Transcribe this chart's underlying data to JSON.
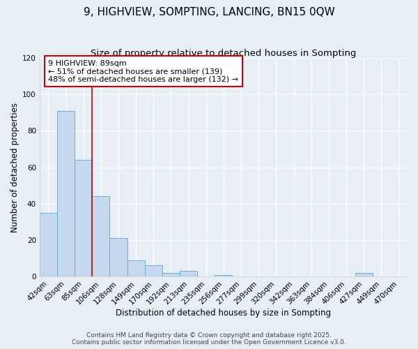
{
  "title": "9, HIGHVIEW, SOMPTING, LANCING, BN15 0QW",
  "subtitle": "Size of property relative to detached houses in Sompting",
  "xlabel": "Distribution of detached houses by size in Sompting",
  "ylabel": "Number of detached properties",
  "bar_labels": [
    "42sqm",
    "63sqm",
    "85sqm",
    "106sqm",
    "128sqm",
    "149sqm",
    "170sqm",
    "192sqm",
    "213sqm",
    "235sqm",
    "256sqm",
    "277sqm",
    "299sqm",
    "320sqm",
    "342sqm",
    "363sqm",
    "384sqm",
    "406sqm",
    "427sqm",
    "449sqm",
    "470sqm"
  ],
  "bar_values": [
    35,
    91,
    64,
    44,
    21,
    9,
    6,
    2,
    3,
    0,
    1,
    0,
    0,
    0,
    0,
    0,
    0,
    0,
    2,
    0,
    0
  ],
  "bar_color": "#c5d8ee",
  "bar_edgecolor": "#6baed6",
  "vline_x_index": 2,
  "vline_color": "#cc0000",
  "ylim": [
    0,
    120
  ],
  "yticks": [
    0,
    20,
    40,
    60,
    80,
    100,
    120
  ],
  "annotation_title": "9 HIGHVIEW: 89sqm",
  "annotation_line1": "← 51% of detached houses are smaller (139)",
  "annotation_line2": "48% of semi-detached houses are larger (132) →",
  "annotation_box_facecolor": "#ffffff",
  "annotation_box_edgecolor": "#cc0000",
  "footer1": "Contains HM Land Registry data © Crown copyright and database right 2025.",
  "footer2": "Contains public sector information licensed under the Open Government Licence v3.0.",
  "background_color": "#e8eef5",
  "grid_color": "#ffffff",
  "title_fontsize": 11,
  "subtitle_fontsize": 9.5,
  "axis_label_fontsize": 8.5,
  "tick_fontsize": 7.5,
  "annotation_fontsize": 8,
  "footer_fontsize": 6.5
}
